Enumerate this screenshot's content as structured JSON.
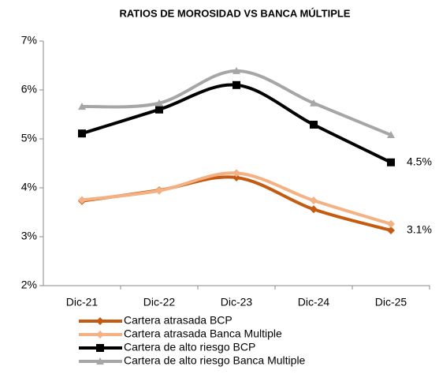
{
  "chart_data": {
    "type": "line",
    "title": "RATIOS DE MOROSIDAD VS BANCA MÚLTIPLE",
    "categories": [
      "Dic-21",
      "Dic-22",
      "Dic-23",
      "Dic-24",
      "Dic-25"
    ],
    "ylim": [
      2,
      7
    ],
    "yticks": [
      {
        "value": 2,
        "label": "2%"
      },
      {
        "value": 3,
        "label": "3%"
      },
      {
        "value": 4,
        "label": "4%"
      },
      {
        "value": 5,
        "label": "5%"
      },
      {
        "value": 6,
        "label": "6%"
      },
      {
        "value": 7,
        "label": "7%"
      }
    ],
    "grid": false,
    "legend": "bottom",
    "series": [
      {
        "name": "Cartera atrasada BCP",
        "color": "#c55a11",
        "marker": "diamond",
        "values": [
          3.73,
          3.95,
          4.21,
          3.56,
          3.13
        ],
        "value_labels": [
          null,
          null,
          null,
          null,
          "3.1%"
        ]
      },
      {
        "name": "Cartera atrasada Banca Multiple",
        "color": "#f4b183",
        "marker": "diamond",
        "values": [
          3.75,
          3.94,
          4.3,
          3.74,
          3.26
        ]
      },
      {
        "name": "Cartera de alto riesgo BCP",
        "color": "#000000",
        "marker": "square",
        "values": [
          5.11,
          5.6,
          6.1,
          5.29,
          4.52
        ],
        "value_labels": [
          null,
          null,
          null,
          null,
          "4.5%"
        ]
      },
      {
        "name": "Cartera de alto riesgo Banca Multiple",
        "color": "#a6a6a6",
        "marker": "triangle",
        "values": [
          5.66,
          5.73,
          6.39,
          5.73,
          5.08
        ]
      }
    ]
  }
}
